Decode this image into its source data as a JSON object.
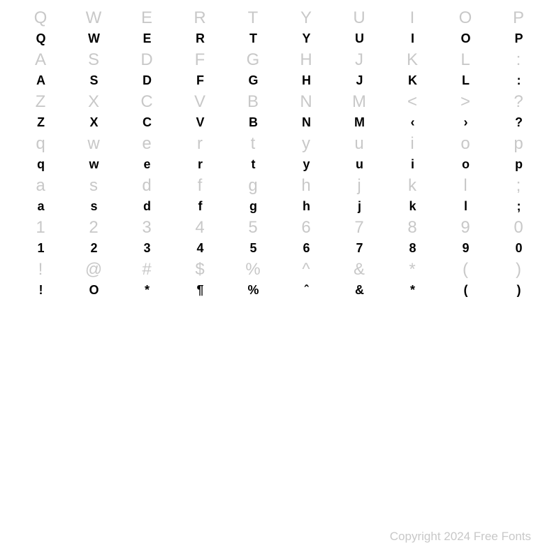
{
  "font_specimen": {
    "background_color": "#ffffff",
    "reference_color": "#c8c8c8",
    "glyph_color": "#000000",
    "reference_fontsize": 24,
    "glyph_fontsize": 18,
    "columns": 10,
    "rows": [
      {
        "reference": [
          "Q",
          "W",
          "E",
          "R",
          "T",
          "Y",
          "U",
          "I",
          "O",
          "P"
        ],
        "glyph": [
          "Q",
          "W",
          "E",
          "R",
          "T",
          "Y",
          "U",
          "I",
          "O",
          "P"
        ]
      },
      {
        "reference": [
          "A",
          "S",
          "D",
          "F",
          "G",
          "H",
          "J",
          "K",
          "L",
          ":"
        ],
        "glyph": [
          "A",
          "S",
          "D",
          "F",
          "G",
          "H",
          "J",
          "K",
          "L",
          ":"
        ]
      },
      {
        "reference": [
          "Z",
          "X",
          "C",
          "V",
          "B",
          "N",
          "M",
          "<",
          ">",
          "?"
        ],
        "glyph": [
          "Z",
          "X",
          "C",
          "V",
          "B",
          "N",
          "M",
          "‹",
          "›",
          "?"
        ]
      },
      {
        "reference": [
          "q",
          "w",
          "e",
          "r",
          "t",
          "y",
          "u",
          "i",
          "o",
          "p"
        ],
        "glyph": [
          "q",
          "w",
          "e",
          "r",
          "t",
          "y",
          "u",
          "i",
          "o",
          "p"
        ]
      },
      {
        "reference": [
          "a",
          "s",
          "d",
          "f",
          "g",
          "h",
          "j",
          "k",
          "l",
          ";"
        ],
        "glyph": [
          "a",
          "s",
          "d",
          "f",
          "g",
          "h",
          "j",
          "k",
          "l",
          ";"
        ]
      },
      {
        "reference": [
          "1",
          "2",
          "3",
          "4",
          "5",
          "6",
          "7",
          "8",
          "9",
          "0"
        ],
        "glyph": [
          "1",
          "2",
          "3",
          "4",
          "5",
          "6",
          "7",
          "8",
          "9",
          "0"
        ]
      },
      {
        "reference": [
          "!",
          "@",
          "#",
          "$",
          "%",
          "^",
          "&",
          "*",
          "(",
          ")"
        ],
        "glyph": [
          "!",
          "O",
          "*",
          "¶",
          "%",
          "ˆ",
          "&",
          "*",
          "(",
          ")"
        ]
      }
    ]
  },
  "copyright": "Copyright 2024 Free Fonts"
}
